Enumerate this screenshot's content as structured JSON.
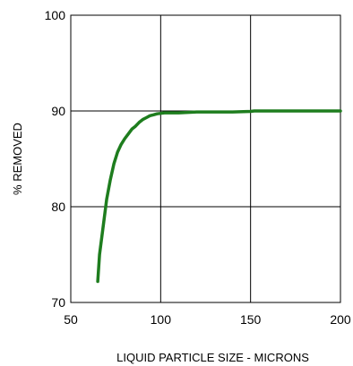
{
  "chart_data": {
    "type": "line",
    "title": "",
    "xlabel": "LIQUID PARTICLE SIZE - MICRONS",
    "ylabel": "% REMOVED",
    "xlim": [
      50,
      200
    ],
    "ylim": [
      70,
      100
    ],
    "xticks": [
      "50",
      "100",
      "150",
      "200"
    ],
    "yticks": [
      "70",
      "80",
      "90",
      "100"
    ],
    "grid": true,
    "line_color": "#1e7d1e",
    "series": [
      {
        "x": [
          65,
          66,
          68,
          70,
          72,
          74,
          76,
          78,
          80,
          82,
          84,
          86,
          88,
          90,
          92,
          94,
          96,
          98,
          100,
          102,
          105,
          110,
          115,
          120,
          130,
          140,
          150,
          152,
          160,
          170,
          180,
          190,
          200
        ],
        "y": [
          72.2,
          75.0,
          77.9,
          80.8,
          82.8,
          84.5,
          85.7,
          86.5,
          87.1,
          87.6,
          88.1,
          88.4,
          88.8,
          89.1,
          89.3,
          89.5,
          89.6,
          89.7,
          89.75,
          89.8,
          89.8,
          89.8,
          89.85,
          89.9,
          89.9,
          89.9,
          89.95,
          90.0,
          90.0,
          90.0,
          90.0,
          90.0,
          90.0
        ]
      }
    ]
  }
}
